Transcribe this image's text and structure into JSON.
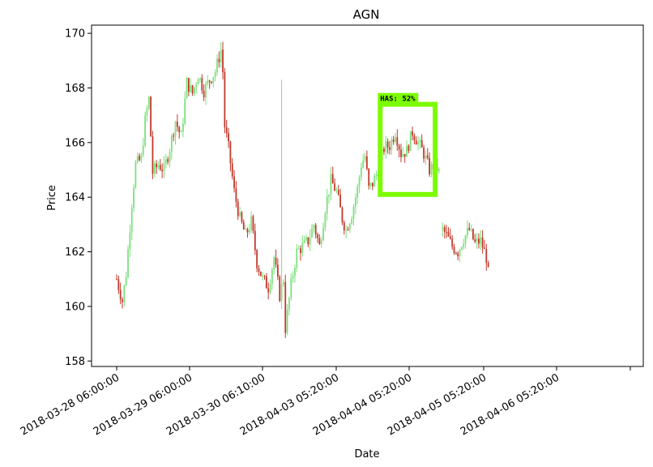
{
  "chart_data": {
    "type": "candlestick",
    "title": "AGN",
    "xlabel": "Date",
    "ylabel": "Price",
    "ylim": [
      157.8,
      170.3
    ],
    "y_ticks": [
      158,
      160,
      162,
      164,
      166,
      168,
      170
    ],
    "x_tick_labels": [
      "2018-03-28 06:00:00",
      "2018-03-29 06:00:00",
      "2018-03-30 06:10:00",
      "2018-04-03 05:20:00",
      "2018-04-04 05:20:00",
      "2018-04-05 05:20:00",
      "2018-04-06 05:20:00"
    ],
    "up_color": "#7ee07e",
    "down_color": "#c0392b",
    "price_path": [
      [
        0,
        161.0
      ],
      [
        3,
        160.2
      ],
      [
        5,
        161.2
      ],
      [
        8,
        163.8
      ],
      [
        10,
        165.2
      ],
      [
        13,
        165.4
      ],
      [
        15,
        166.8
      ],
      [
        17,
        167.6
      ],
      [
        19,
        164.9
      ],
      [
        22,
        165.2
      ],
      [
        25,
        165.0
      ],
      [
        28,
        165.8
      ],
      [
        31,
        166.8
      ],
      [
        34,
        166.2
      ],
      [
        37,
        168.2
      ],
      [
        40,
        167.8
      ],
      [
        43,
        168.5
      ],
      [
        46,
        167.9
      ],
      [
        49,
        168.3
      ],
      [
        52,
        168.6
      ],
      [
        55,
        169.4
      ],
      [
        56,
        168.6
      ],
      [
        57,
        166.6
      ],
      [
        59,
        165.8
      ],
      [
        62,
        164.2
      ],
      [
        65,
        163.2
      ],
      [
        68,
        162.6
      ],
      [
        71,
        163.1
      ],
      [
        74,
        161.6
      ],
      [
        77,
        161.0
      ],
      [
        80,
        160.7
      ],
      [
        83,
        161.8
      ],
      [
        86,
        160.4
      ],
      [
        88,
        161.0
      ],
      [
        89,
        159.2
      ],
      [
        92,
        160.8
      ],
      [
        95,
        162.0
      ],
      [
        98,
        162.2
      ],
      [
        101,
        162.4
      ],
      [
        104,
        163.0
      ],
      [
        107,
        162.2
      ],
      [
        110,
        163.6
      ],
      [
        113,
        164.6
      ],
      [
        116,
        164.2
      ],
      [
        119,
        163.2
      ],
      [
        121,
        162.8
      ],
      [
        124,
        163.4
      ],
      [
        127,
        164.3
      ],
      [
        129,
        165.2
      ],
      [
        131,
        165.5
      ],
      [
        133,
        164.3
      ],
      [
        135,
        164.5
      ],
      [
        138,
        165.0
      ],
      [
        141,
        165.8
      ],
      [
        144,
        165.9
      ],
      [
        147,
        166.4
      ],
      [
        150,
        165.6
      ],
      [
        153,
        165.7
      ],
      [
        156,
        166.4
      ],
      [
        159,
        166.0
      ],
      [
        162,
        165.6
      ],
      [
        165,
        165.0
      ],
      [
        168,
        165.2
      ],
      [
        170,
        164.9
      ],
      [
        171,
        162.9
      ],
      [
        174,
        162.6
      ],
      [
        177,
        162.2
      ],
      [
        180,
        162.0
      ],
      [
        183,
        162.5
      ],
      [
        186,
        162.8
      ],
      [
        189,
        162.3
      ],
      [
        192,
        162.4
      ],
      [
        195,
        161.8
      ],
      [
        196,
        161.2
      ]
    ],
    "gaps": [
      [
        171,
        172
      ]
    ],
    "spike": {
      "index": 87,
      "high": 168.3,
      "low": 160.6
    },
    "detection_box": {
      "label": "HAS: 52%",
      "color": "#7cfc00",
      "x_range": [
        139,
        168
      ],
      "y_range": [
        164.1,
        167.4
      ]
    }
  }
}
